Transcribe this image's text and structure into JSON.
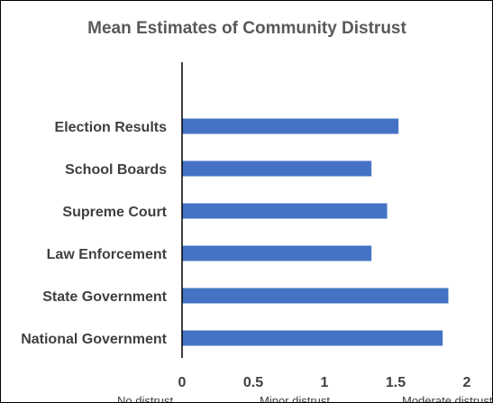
{
  "chart_data": {
    "type": "bar",
    "orientation": "horizontal",
    "title": "Mean Estimates of Community Distrust",
    "xlabel": "",
    "ylabel": "",
    "categories": [
      "Election Results",
      "School Boards",
      "Supreme Court",
      "Law Enforcement",
      "State Government",
      "National Government"
    ],
    "values": [
      1.52,
      1.33,
      1.44,
      1.33,
      1.87,
      1.83
    ],
    "xlim": [
      0,
      2
    ],
    "x_ticks": [
      "0",
      "0.5",
      "1",
      "1.5",
      "2"
    ],
    "x_anchor_labels": [
      {
        "x": 0,
        "text": "No distrust"
      },
      {
        "x": 1,
        "text": "Minor distrust"
      },
      {
        "x": 2,
        "text": "Moderate distrust"
      }
    ],
    "bar_color": "#4472C4",
    "grid": false,
    "legend": "none"
  }
}
